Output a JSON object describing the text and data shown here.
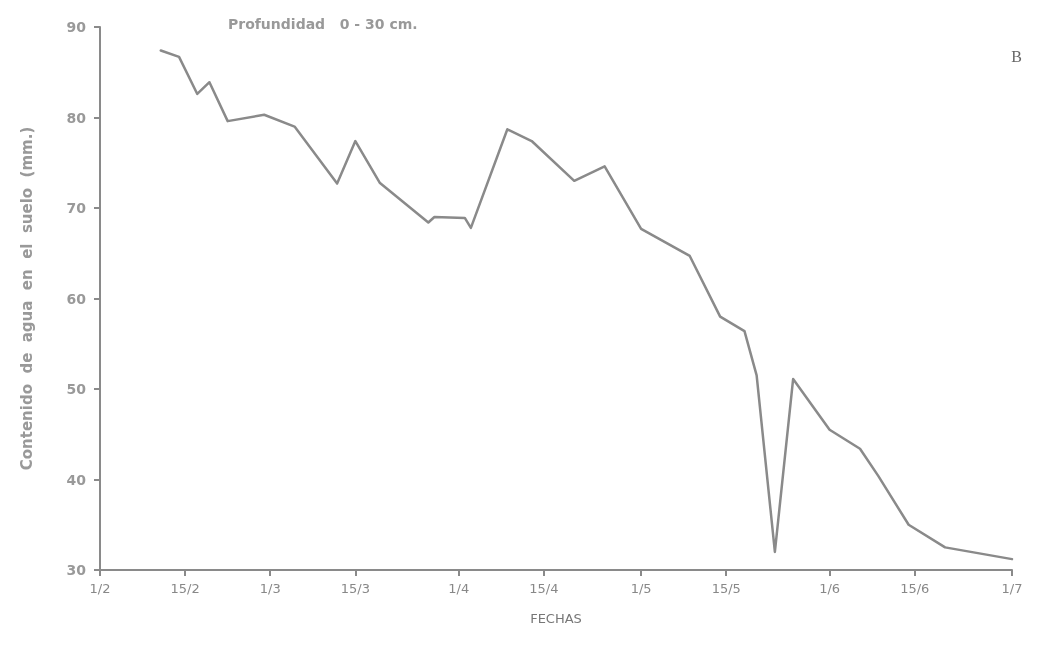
{
  "chart_data": {
    "type": "line",
    "title": "Profundidad   0 - 30 cm.",
    "xlabel": "FECHAS",
    "ylabel": "Contenido  de  agua  en  el  suelo  (mm.)",
    "annotations": [
      "B"
    ],
    "x": [
      "--02-11",
      "--02-14",
      "--02-17",
      "--02-19",
      "--02-22",
      "--02-28",
      "--03-05",
      "--03-12",
      "--03-15",
      "--03-19",
      "--03-27",
      "--03-28",
      "--04-02",
      "--04-03",
      "--04-09",
      "--04-13",
      "--04-20",
      "--04-25",
      "--05-01",
      "--05-09",
      "--05-14",
      "--05-18",
      "--05-20",
      "--05-23",
      "--05-26",
      "--06-01",
      "--06-06",
      "--06-09",
      "--06-14",
      "--06-20",
      "--07-01"
    ],
    "series": [
      {
        "color": "#8a8a8a",
        "values": [
          87.4,
          86.7,
          82.6,
          83.9,
          79.6,
          80.3,
          79.0,
          72.7,
          77.4,
          72.8,
          68.4,
          69.0,
          68.9,
          67.8,
          78.7,
          77.4,
          73.0,
          74.6,
          67.7,
          64.7,
          58.0,
          56.4,
          51.5,
          32.0,
          51.1,
          45.5,
          43.4,
          40.4,
          35.0,
          32.5,
          31.2
        ]
      }
    ],
    "xlim": [
      "--02-01",
      "--07-01"
    ],
    "xticks": [
      {
        "value": "--02-01",
        "label": "1/2"
      },
      {
        "value": "--02-15",
        "label": "15/2"
      },
      {
        "value": "--03-01",
        "label": "1/3"
      },
      {
        "value": "--03-15",
        "label": "15/3"
      },
      {
        "value": "--04-01",
        "label": "1/4"
      },
      {
        "value": "--04-15",
        "label": "15/4"
      },
      {
        "value": "--05-01",
        "label": "1/5"
      },
      {
        "value": "--05-15",
        "label": "15/5"
      },
      {
        "value": "--06-01",
        "label": "1/6"
      },
      {
        "value": "--06-15",
        "label": "15/6"
      },
      {
        "value": "--07-01",
        "label": "1/7"
      }
    ],
    "ylim": [
      30,
      90
    ],
    "yticks": [
      30,
      40,
      50,
      60,
      70,
      80,
      90
    ],
    "grid": false,
    "marker": "none",
    "line_style": "solid"
  }
}
